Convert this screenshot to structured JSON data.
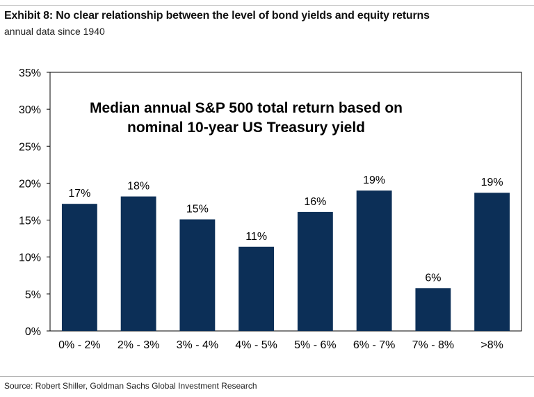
{
  "exhibit": {
    "title": "Exhibit 8: No clear relationship between the level of bond yields and equity returns",
    "subtitle": "annual data since 1940"
  },
  "chart_data": {
    "type": "bar",
    "title": "Median annual S&P 500 total return based on nominal 10-year US Treasury yield",
    "title_lines": [
      "Median annual S&P 500 total return based on",
      "nominal 10-year US Treasury yield"
    ],
    "categories": [
      "0% - 2%",
      "2% - 3%",
      "3% - 4%",
      "4% - 5%",
      "5% - 6%",
      "6% - 7%",
      "7% - 8%",
      ">8%"
    ],
    "values": [
      17.2,
      18.2,
      15.1,
      11.4,
      16.1,
      19.0,
      5.8,
      18.7
    ],
    "data_labels": [
      "17%",
      "18%",
      "15%",
      "11%",
      "16%",
      "19%",
      "6%",
      "19%"
    ],
    "ylim": [
      0,
      35
    ],
    "yticks": [
      0,
      5,
      10,
      15,
      20,
      25,
      30,
      35
    ],
    "ytick_labels": [
      "0%",
      "5%",
      "10%",
      "15%",
      "20%",
      "25%",
      "30%",
      "35%"
    ],
    "xlabel": "",
    "ylabel": "",
    "grid": false,
    "legend": "none",
    "bar_color": "#0c2f57"
  },
  "footer": {
    "source": "Source: Robert Shiller, Goldman Sachs Global Investment Research"
  }
}
